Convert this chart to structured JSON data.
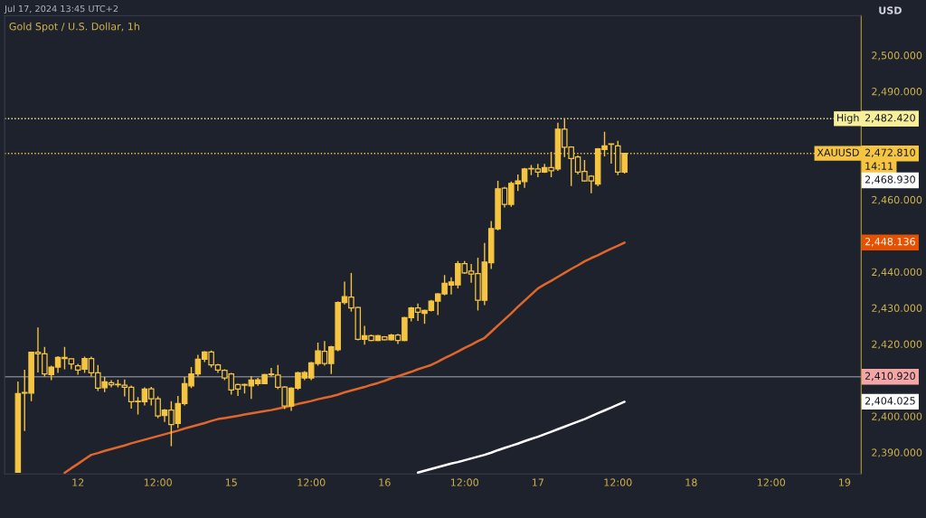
{
  "chart_data": {
    "type": "candlestick",
    "title": "Gold Spot / U.S. Dollar, 1h",
    "ylabel": "USD",
    "annotations": [
      "Jul 17, 2024 13:45 UTC+2",
      "2,482.420",
      "2,472.810",
      "14:11",
      "2,468.930",
      "2,448.136",
      "2,410.920",
      "2,404.025"
    ],
    "categories": [
      null,
      null,
      null,
      null,
      null,
      null,
      null,
      null,
      null,
      "12",
      null,
      null,
      null,
      null,
      null,
      null,
      null,
      null,
      null,
      null,
      null,
      "12:00",
      null,
      null,
      null,
      null,
      null,
      null,
      null,
      null,
      null,
      null,
      "15",
      null,
      null,
      null,
      null,
      null,
      null,
      null,
      null,
      null,
      null,
      null,
      "12:00",
      null,
      null,
      null,
      null,
      null,
      null,
      null,
      null,
      null,
      null,
      "16",
      null,
      null,
      null,
      null,
      null,
      null,
      null,
      null,
      null,
      null,
      null,
      "12:00",
      null,
      null,
      null,
      null,
      null,
      null,
      null,
      null,
      null,
      null,
      "17",
      null,
      null,
      null,
      null,
      null,
      null,
      null,
      null,
      null,
      null,
      null,
      "12:00",
      null,
      null,
      null,
      null,
      null,
      null,
      null,
      null,
      null,
      null,
      "18",
      null,
      null,
      null,
      null,
      null,
      null,
      null,
      null,
      null,
      null,
      null,
      "12:00",
      null,
      null,
      null,
      null,
      null,
      null,
      null,
      null,
      null,
      null,
      "19"
    ],
    "ohlc": [
      [
        2384.5,
        2409.6,
        2384.5,
        2406.3
      ],
      [
        2406.4,
        2412.9,
        2395.9,
        2406.6
      ],
      [
        2406.4,
        2417.9,
        2404.2,
        2417.7
      ],
      [
        2417.7,
        2424.6,
        2412.1,
        2417.3
      ],
      [
        2417.3,
        2419.2,
        2411.0,
        2411.7
      ],
      [
        2411.5,
        2414.0,
        2410.0,
        2413.6
      ],
      [
        2413.6,
        2416.6,
        2412.0,
        2416.3
      ],
      [
        2416.3,
        2419.2,
        2413.0,
        2416.0
      ],
      [
        2415.9,
        2416.0,
        2413.0,
        2414.5
      ],
      [
        2414.0,
        2414.5,
        2411.5,
        2412.8
      ],
      [
        2413.0,
        2416.5,
        2412.0,
        2416.0
      ],
      [
        2416.0,
        2416.5,
        2411.0,
        2412.0
      ],
      [
        2412.0,
        2414.2,
        2407.0,
        2407.8
      ],
      [
        2407.9,
        2410.9,
        2406.7,
        2409.5
      ],
      [
        2409.3,
        2410.0,
        2408.0,
        2408.7
      ],
      [
        2408.7,
        2410.1,
        2408.0,
        2408.8
      ],
      [
        2408.6,
        2410.2,
        2405.5,
        2408.0
      ],
      [
        2408.0,
        2408.5,
        2402.1,
        2404.0
      ],
      [
        2404.0,
        2405.3,
        2400.5,
        2404.0
      ],
      [
        2404.0,
        2408.0,
        2403.0,
        2407.5
      ],
      [
        2407.6,
        2408.1,
        2403.0,
        2404.8
      ],
      [
        2404.8,
        2405.5,
        2399.5,
        2400.1
      ],
      [
        2400.2,
        2402.0,
        2398.4,
        2401.7
      ],
      [
        2401.7,
        2404.2,
        2391.7,
        2397.7
      ],
      [
        2398.0,
        2405.6,
        2396.7,
        2403.5
      ],
      [
        2403.5,
        2410.9,
        2403.0,
        2409.0
      ],
      [
        2408.4,
        2413.6,
        2407.8,
        2411.7
      ],
      [
        2411.7,
        2417.0,
        2411.0,
        2415.8
      ],
      [
        2415.8,
        2418.0,
        2415.0,
        2417.8
      ],
      [
        2417.8,
        2418.2,
        2413.5,
        2414.2
      ],
      [
        2414.2,
        2414.5,
        2412.0,
        2412.8
      ],
      [
        2412.7,
        2413.0,
        2410.0,
        2410.6
      ],
      [
        2411.7,
        2412.0,
        2406.0,
        2407.3
      ],
      [
        2408.8,
        2409.0,
        2405.6,
        2407.5
      ],
      [
        2408.8,
        2409.0,
        2406.3,
        2408.6
      ],
      [
        2408.4,
        2411.1,
        2404.8,
        2410.0
      ],
      [
        2409.0,
        2410.6,
        2408.4,
        2410.1
      ],
      [
        2409.0,
        2411.7,
        2409.0,
        2411.5
      ],
      [
        2411.5,
        2413.4,
        2411.0,
        2411.7
      ],
      [
        2411.4,
        2414.2,
        2407.5,
        2408.0
      ],
      [
        2408.1,
        2408.3,
        2402.0,
        2402.8
      ],
      [
        2402.8,
        2408.0,
        2401.5,
        2407.8
      ],
      [
        2407.8,
        2412.3,
        2407.3,
        2412.0
      ],
      [
        2410.6,
        2412.5,
        2410.0,
        2412.1
      ],
      [
        2410.6,
        2415.0,
        2410.0,
        2414.8
      ],
      [
        2414.6,
        2420.4,
        2414.0,
        2418.1
      ],
      [
        2418.0,
        2420.8,
        2414.0,
        2414.6
      ],
      [
        2414.6,
        2419.5,
        2411.7,
        2419.2
      ],
      [
        2418.4,
        2431.8,
        2418.0,
        2431.5
      ],
      [
        2431.5,
        2437.3,
        2431.0,
        2433.1
      ],
      [
        2433.0,
        2439.7,
        2429.0,
        2430.0
      ],
      [
        2430.1,
        2430.3,
        2421.0,
        2421.3
      ],
      [
        2421.3,
        2425.0,
        2419.8,
        2422.3
      ],
      [
        2422.3,
        2422.6,
        2420.8,
        2421.0
      ],
      [
        2421.0,
        2422.5,
        2420.8,
        2422.3
      ],
      [
        2422.0,
        2422.2,
        2421.0,
        2421.2
      ],
      [
        2421.2,
        2422.8,
        2421.0,
        2422.5
      ],
      [
        2422.5,
        2422.8,
        2420.0,
        2421.0
      ],
      [
        2421.0,
        2427.5,
        2420.8,
        2427.3
      ],
      [
        2427.3,
        2430.3,
        2426.3,
        2430.0
      ],
      [
        2430.0,
        2431.2,
        2426.4,
        2428.8
      ],
      [
        2428.5,
        2429.5,
        2425.6,
        2429.3
      ],
      [
        2429.3,
        2432.2,
        2429.0,
        2431.9
      ],
      [
        2431.9,
        2434.1,
        2428.0,
        2433.9
      ],
      [
        2433.9,
        2439.1,
        2433.5,
        2436.8
      ],
      [
        2436.3,
        2438.5,
        2433.7,
        2437.2
      ],
      [
        2436.4,
        2443.0,
        2435.4,
        2442.3
      ],
      [
        2442.3,
        2443.0,
        2439.4,
        2439.7
      ],
      [
        2440.2,
        2442.2,
        2437.0,
        2439.4
      ],
      [
        2439.5,
        2443.9,
        2429.3,
        2432.1
      ],
      [
        2432.1,
        2448.0,
        2430.8,
        2442.7
      ],
      [
        2442.5,
        2454.1,
        2440.8,
        2452.0
      ],
      [
        2451.9,
        2465.2,
        2451.5,
        2463.0
      ],
      [
        2463.2,
        2463.5,
        2457.8,
        2458.7
      ],
      [
        2458.7,
        2465.0,
        2458.0,
        2464.5
      ],
      [
        2464.4,
        2467.0,
        2462.4,
        2465.2
      ],
      [
        2465.0,
        2468.8,
        2463.3,
        2468.5
      ],
      [
        2468.6,
        2469.6,
        2466.8,
        2468.5
      ],
      [
        2468.5,
        2469.9,
        2466.2,
        2467.6
      ],
      [
        2467.6,
        2469.9,
        2467.4,
        2468.9
      ],
      [
        2468.9,
        2473.2,
        2466.2,
        2468.0
      ],
      [
        2468.5,
        2481.3,
        2468.0,
        2479.5
      ],
      [
        2479.5,
        2482.4,
        2471.8,
        2474.5
      ],
      [
        2474.6,
        2474.8,
        2463.8,
        2471.4
      ],
      [
        2471.8,
        2472.2,
        2467.0,
        2467.6
      ],
      [
        2467.8,
        2471.0,
        2465.0,
        2465.2
      ],
      [
        2466.5,
        2466.8,
        2461.8,
        2465.2
      ],
      [
        2464.3,
        2474.3,
        2463.7,
        2474.1
      ],
      [
        2473.9,
        2478.8,
        2472.0,
        2474.9
      ],
      [
        2475.3,
        2475.5,
        2470.0,
        2475.3
      ],
      [
        2474.9,
        2476.3,
        2466.8,
        2467.6
      ],
      [
        2467.6,
        2473.0,
        2467.2,
        2472.8
      ],
      null,
      null,
      null,
      null,
      null,
      null,
      null,
      null,
      null,
      null,
      null,
      null,
      null,
      null,
      null,
      null,
      null,
      null,
      null,
      null,
      null,
      null,
      null,
      null,
      null,
      null,
      null,
      null,
      null,
      null,
      null,
      null,
      null
    ],
    "color": "#f5c542",
    "series": [
      {
        "type": "line",
        "color": "#e0662b",
        "values": [
          null,
          null,
          null,
          null,
          null,
          null,
          null,
          2384.3,
          2385.6,
          2386.8,
          2388.1,
          2389.3,
          2389.8,
          2390.4,
          2390.9,
          2391.4,
          2391.9,
          2392.5,
          2393.0,
          2393.5,
          2394.0,
          2394.5,
          2395.0,
          2395.5,
          2396.0,
          2396.6,
          2397.1,
          2397.6,
          2398.1,
          2398.7,
          2399.2,
          2399.5,
          2399.8,
          2400.1,
          2400.5,
          2400.8,
          2401.1,
          2401.4,
          2401.7,
          2402.1,
          2402.5,
          2402.9,
          2403.4,
          2403.8,
          2404.2,
          2404.7,
          2405.1,
          2405.5,
          2406.0,
          2406.6,
          2407.1,
          2407.6,
          2408.1,
          2408.7,
          2409.2,
          2409.8,
          2410.5,
          2411.1,
          2411.7,
          2412.3,
          2413.0,
          2413.6,
          2414.2,
          2415.1,
          2416.1,
          2417.0,
          2417.9,
          2418.9,
          2419.8,
          2420.8,
          2421.7,
          2423.4,
          2425.1,
          2426.8,
          2428.5,
          2430.3,
          2432.0,
          2433.7,
          2435.4,
          2436.5,
          2437.5,
          2438.6,
          2439.7,
          2440.8,
          2441.8,
          2442.9,
          2443.8,
          2444.6,
          2445.5,
          2446.4,
          2447.2,
          2448.1,
          null,
          null,
          null,
          null,
          null,
          null,
          null,
          null,
          null,
          null,
          null,
          null,
          null,
          null,
          null,
          null,
          null,
          null,
          null,
          null,
          null,
          null,
          null,
          null,
          null,
          null,
          null,
          null,
          null,
          null,
          null,
          null,
          null
        ]
      },
      {
        "type": "line",
        "color": "#ffffff",
        "values": [
          null,
          null,
          null,
          null,
          null,
          null,
          null,
          null,
          null,
          null,
          null,
          null,
          null,
          null,
          null,
          null,
          null,
          null,
          null,
          null,
          null,
          null,
          null,
          null,
          null,
          null,
          null,
          null,
          null,
          null,
          null,
          null,
          null,
          null,
          null,
          null,
          null,
          null,
          null,
          null,
          null,
          null,
          null,
          null,
          null,
          null,
          null,
          null,
          null,
          null,
          null,
          null,
          null,
          null,
          null,
          null,
          null,
          null,
          null,
          null,
          2384.4,
          2384.9,
          2385.4,
          2385.9,
          2386.4,
          2386.9,
          2387.3,
          2387.8,
          2388.3,
          2388.8,
          2389.3,
          2389.9,
          2390.6,
          2391.2,
          2391.8,
          2392.4,
          2393.1,
          2393.7,
          2394.3,
          2395.0,
          2395.7,
          2396.4,
          2397.1,
          2397.8,
          2398.5,
          2399.2,
          2400.0,
          2400.8,
          2401.6,
          2402.4,
          2403.2,
          2404.0,
          null,
          null,
          null,
          null,
          null,
          null,
          null,
          null,
          null,
          null,
          null,
          null,
          null,
          null,
          null,
          null,
          null,
          null,
          null,
          null,
          null,
          null,
          null,
          null,
          null,
          null,
          null,
          null,
          null,
          null,
          null,
          null,
          null
        ]
      }
    ],
    "ref_lines": [
      {
        "axis": "y",
        "value": 2482.42,
        "label": "High",
        "color": "#f7ef9a",
        "line_style": "dotted"
      },
      {
        "axis": "y",
        "value": 2472.81,
        "label": "XAUUSD",
        "color": "#f5c542",
        "line_style": "dotted"
      },
      {
        "axis": "y",
        "value": 2410.92,
        "color": "#787b86",
        "line_style": "solid"
      }
    ],
    "ylim": [
      2384,
      2511
    ],
    "yticks": [
      {
        "value": 2390,
        "label": "2,390.000"
      },
      {
        "value": 2400,
        "label": "2,400.000"
      },
      {
        "value": 2420,
        "label": "2,420.000"
      },
      {
        "value": 2430,
        "label": "2,430.000"
      },
      {
        "value": 2440,
        "label": "2,440.000"
      },
      {
        "value": 2460,
        "label": "2,460.000"
      },
      {
        "value": 2490,
        "label": "2,490.000"
      },
      {
        "value": 2500,
        "label": "2,500.000"
      }
    ],
    "grid": false,
    "legend": false
  }
}
